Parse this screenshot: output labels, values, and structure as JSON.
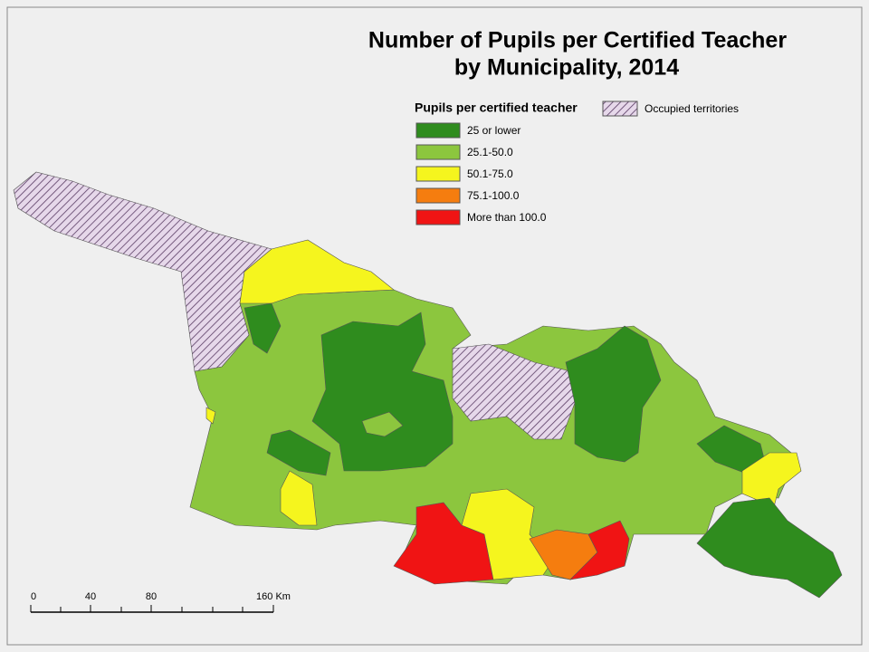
{
  "title": {
    "line1": "Number of Pupils per Certified Teacher",
    "line2": "by Municipality, 2014"
  },
  "legend": {
    "title": "Pupils per certified teacher",
    "occupied": "Occupied territories",
    "items": [
      {
        "label": "25 or lower",
        "color": "#2f8c1e"
      },
      {
        "label": "25.1-50.0",
        "color": "#8cc63e"
      },
      {
        "label": "50.1-75.0",
        "color": "#f5f51e"
      },
      {
        "label": "75.1-100.0",
        "color": "#f57d0f"
      },
      {
        "label": "More than 100.0",
        "color": "#f01414"
      }
    ]
  },
  "scale": {
    "labels": [
      "0",
      "40",
      "80",
      "160 Km"
    ]
  }
}
